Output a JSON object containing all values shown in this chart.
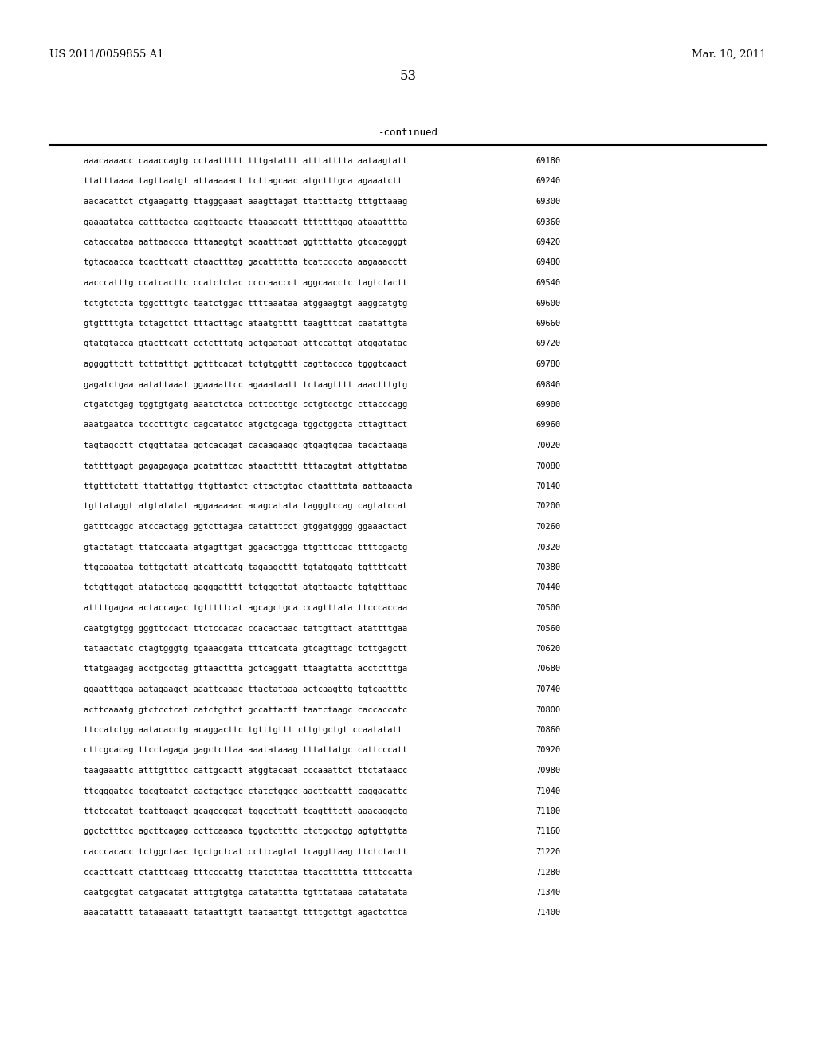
{
  "header_left": "US 2011/0059855 A1",
  "header_right": "Mar. 10, 2011",
  "page_number": "53",
  "continued_label": "-continued",
  "background_color": "#ffffff",
  "text_color": "#000000",
  "font_size_header": 9.5,
  "font_size_page": 12,
  "font_size_continued": 9,
  "font_size_sequence": 7.5,
  "sequence_lines": [
    [
      "aaacaaaacc caaaccagtg cctaattttt tttgatattt atttatttta aataagtatt",
      "69180"
    ],
    [
      "ttatttaaaa tagttaatgt attaaaaact tcttagcaac atgctttgca agaaatctt",
      "69240"
    ],
    [
      "aacacattct ctgaagattg ttagggaaat aaagttagat ttatttactg tttgttaaag",
      "69300"
    ],
    [
      "gaaaatatca catttactca cagttgactc ttaaaacatt tttttttgag ataaatttta",
      "69360"
    ],
    [
      "cataccataa aattaaccca tttaaagtgt acaatttaat ggttttatta gtcacagggt",
      "69420"
    ],
    [
      "tgtacaacca tcacttcatt ctaactttag gacattttta tcatccccta aagaaacctt",
      "69480"
    ],
    [
      "aacccatttg ccatcacttc ccatctctac ccccaaccct aggcaacctc tagtctactt",
      "69540"
    ],
    [
      "tctgtctcta tggctttgtc taatctggac ttttaaataa atggaagtgt aaggcatgtg",
      "69600"
    ],
    [
      "gtgttttgta tctagcttct tttacttagc ataatgtttt taagtttcat caatattgta",
      "69660"
    ],
    [
      "gtatgtacca gtacttcatt cctctttatg actgaataat attccattgt atggatatac",
      "69720"
    ],
    [
      "aggggttctt tcttatttgt ggtttcacat tctgtggttt cagttaccca tgggtcaact",
      "69780"
    ],
    [
      "gagatctgaa aatattaaat ggaaaattcc agaaataatt tctaagtttt aaactttgtg",
      "69840"
    ],
    [
      "ctgatctgag tggtgtgatg aaatctctca ccttccttgc cctgtcctgc cttacccagg",
      "69900"
    ],
    [
      "aaatgaatca tccctttgtc cagcatatcc atgctgcaga tggctggcta cttagttact",
      "69960"
    ],
    [
      "tagtagcctt ctggttataa ggtcacagat cacaagaagc gtgagtgcaa tacactaaga",
      "70020"
    ],
    [
      "tattttgagt gagagagaga gcatattcac ataacttttt tttacagtat attgttataa",
      "70080"
    ],
    [
      "ttgtttctatt ttattattgg ttgttaatct cttactgtac ctaatttata aattaaacta",
      "70140"
    ],
    [
      "tgttataggt atgtatatat aggaaaaaac acagcatata tagggtccag cagtatccat",
      "70200"
    ],
    [
      "gatttcaggc atccactagg ggtcttagaa catatttcct gtggatgggg ggaaactact",
      "70260"
    ],
    [
      "gtactatagt ttatccaata atgagttgat ggacactgga ttgtttccac ttttcgactg",
      "70320"
    ],
    [
      "ttgcaaataa tgttgctatt atcattcatg tagaagcttt tgtatggatg tgttttcatt",
      "70380"
    ],
    [
      "tctgttgggt atatactcag gagggatttt tctgggttat atgttaactc tgtgtttaac",
      "70440"
    ],
    [
      "attttgagaa actaccagac tgtttttcat agcagctgca ccagtttata ttcccaccaa",
      "70500"
    ],
    [
      "caatgtgtgg gggttccact ttctccacac ccacactaac tattgttact atattttgaa",
      "70560"
    ],
    [
      "tataactatc ctagtgggtg tgaaacgata tttcatcata gtcagttagc tcttgagctt",
      "70620"
    ],
    [
      "ttatgaagag acctgcctag gttaacttta gctcaggatt ttaagtatta acctctttga",
      "70680"
    ],
    [
      "ggaatttgga aatagaagct aaattcaaac ttactataaa actcaagttg tgtcaatttc",
      "70740"
    ],
    [
      "acttcaaatg gtctcctcat catctgttct gccattactt taatctaagc caccaccatc",
      "70800"
    ],
    [
      "ttccatctgg aatacacctg acaggacttc tgtttgttt cttgtgctgt ccaatatatt",
      "70860"
    ],
    [
      "cttcgcacag ttcctagaga gagctcttaa aaatataaag tttattatgc cattcccatt",
      "70920"
    ],
    [
      "taagaaattc atttgtttcc cattgcactt atggtacaat cccaaattct ttctataacc",
      "70980"
    ],
    [
      "ttcgggatcc tgcgtgatct cactgctgcc ctatctggcc aacttcattt caggacattc",
      "71040"
    ],
    [
      "ttctccatgt tcattgagct gcagccgcat tggccttatt tcagtttctt aaacaggctg",
      "71100"
    ],
    [
      "ggctctttcc agcttcagag ccttcaaaca tggctctttc ctctgcctgg agtgttgtta",
      "71160"
    ],
    [
      "cacccacacc tctggctaac tgctgctcat ccttcagtat tcaggttaag ttctctactt",
      "71220"
    ],
    [
      "ccacttcatt ctatttcaag tttcccattg ttatctttaa ttaccttttta ttttccatta",
      "71280"
    ],
    [
      "caatgcgtat catgacatat atttgtgtga catatattta tgtttataaa catatatata",
      "71340"
    ],
    [
      "aaacatattt tataaaaatt tataattgtt taataattgt ttttgcttgt agactcttca",
      "71400"
    ]
  ]
}
